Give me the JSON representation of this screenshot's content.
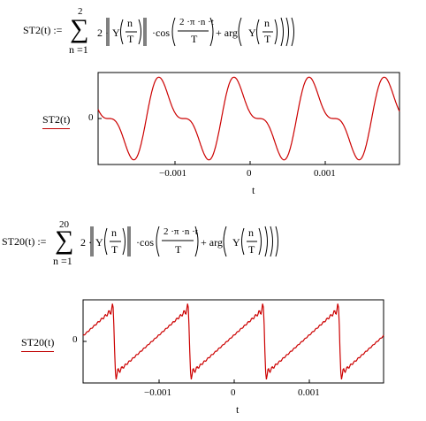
{
  "equation1": {
    "lhs": "ST2(t) :=",
    "upper": "2",
    "lower": "n =1",
    "coef": "2 ·",
    "Y": "Y",
    "n": "n",
    "T": "T",
    "cos": "·cos",
    "numer": "2 ·π ·n ·t",
    "denom": "T",
    "plus_arg": "+ arg",
    "Y2": "Y",
    "n2": "n",
    "T2": "T"
  },
  "equation2": {
    "lhs": "ST20(t) :=",
    "upper": "20",
    "lower": "n =1",
    "coef": "2 ·",
    "Y": "Y",
    "n": "n",
    "T": "T",
    "cos": "·cos",
    "numer": "2 ·π ·n ·t",
    "denom": "T",
    "plus_arg": "+ arg",
    "Y2": "Y",
    "n2": "n",
    "T2": "T"
  },
  "chart_data": [
    {
      "type": "line",
      "ylabel": "ST2(t)",
      "xlabel": "t",
      "x_ticks": [
        "−0.001",
        "0",
        "0.001"
      ],
      "y_ticks": [
        "0"
      ],
      "series": [
        {
          "values_description": "sum of first 2 harmonics, period approx 0.001, ~4 cycles across range"
        }
      ],
      "xlim": [
        -0.002,
        0.002
      ],
      "line_color": "#cc0000"
    },
    {
      "type": "line",
      "ylabel": "ST20(t)",
      "xlabel": "t",
      "x_ticks": [
        "−0.001",
        "0",
        "0.001"
      ],
      "y_ticks": [
        "0"
      ],
      "series": [
        {
          "values_description": "sawtooth approximation with 20 harmonics, period approx 0.001"
        }
      ],
      "xlim": [
        -0.002,
        0.002
      ],
      "line_color": "#cc0000"
    }
  ]
}
